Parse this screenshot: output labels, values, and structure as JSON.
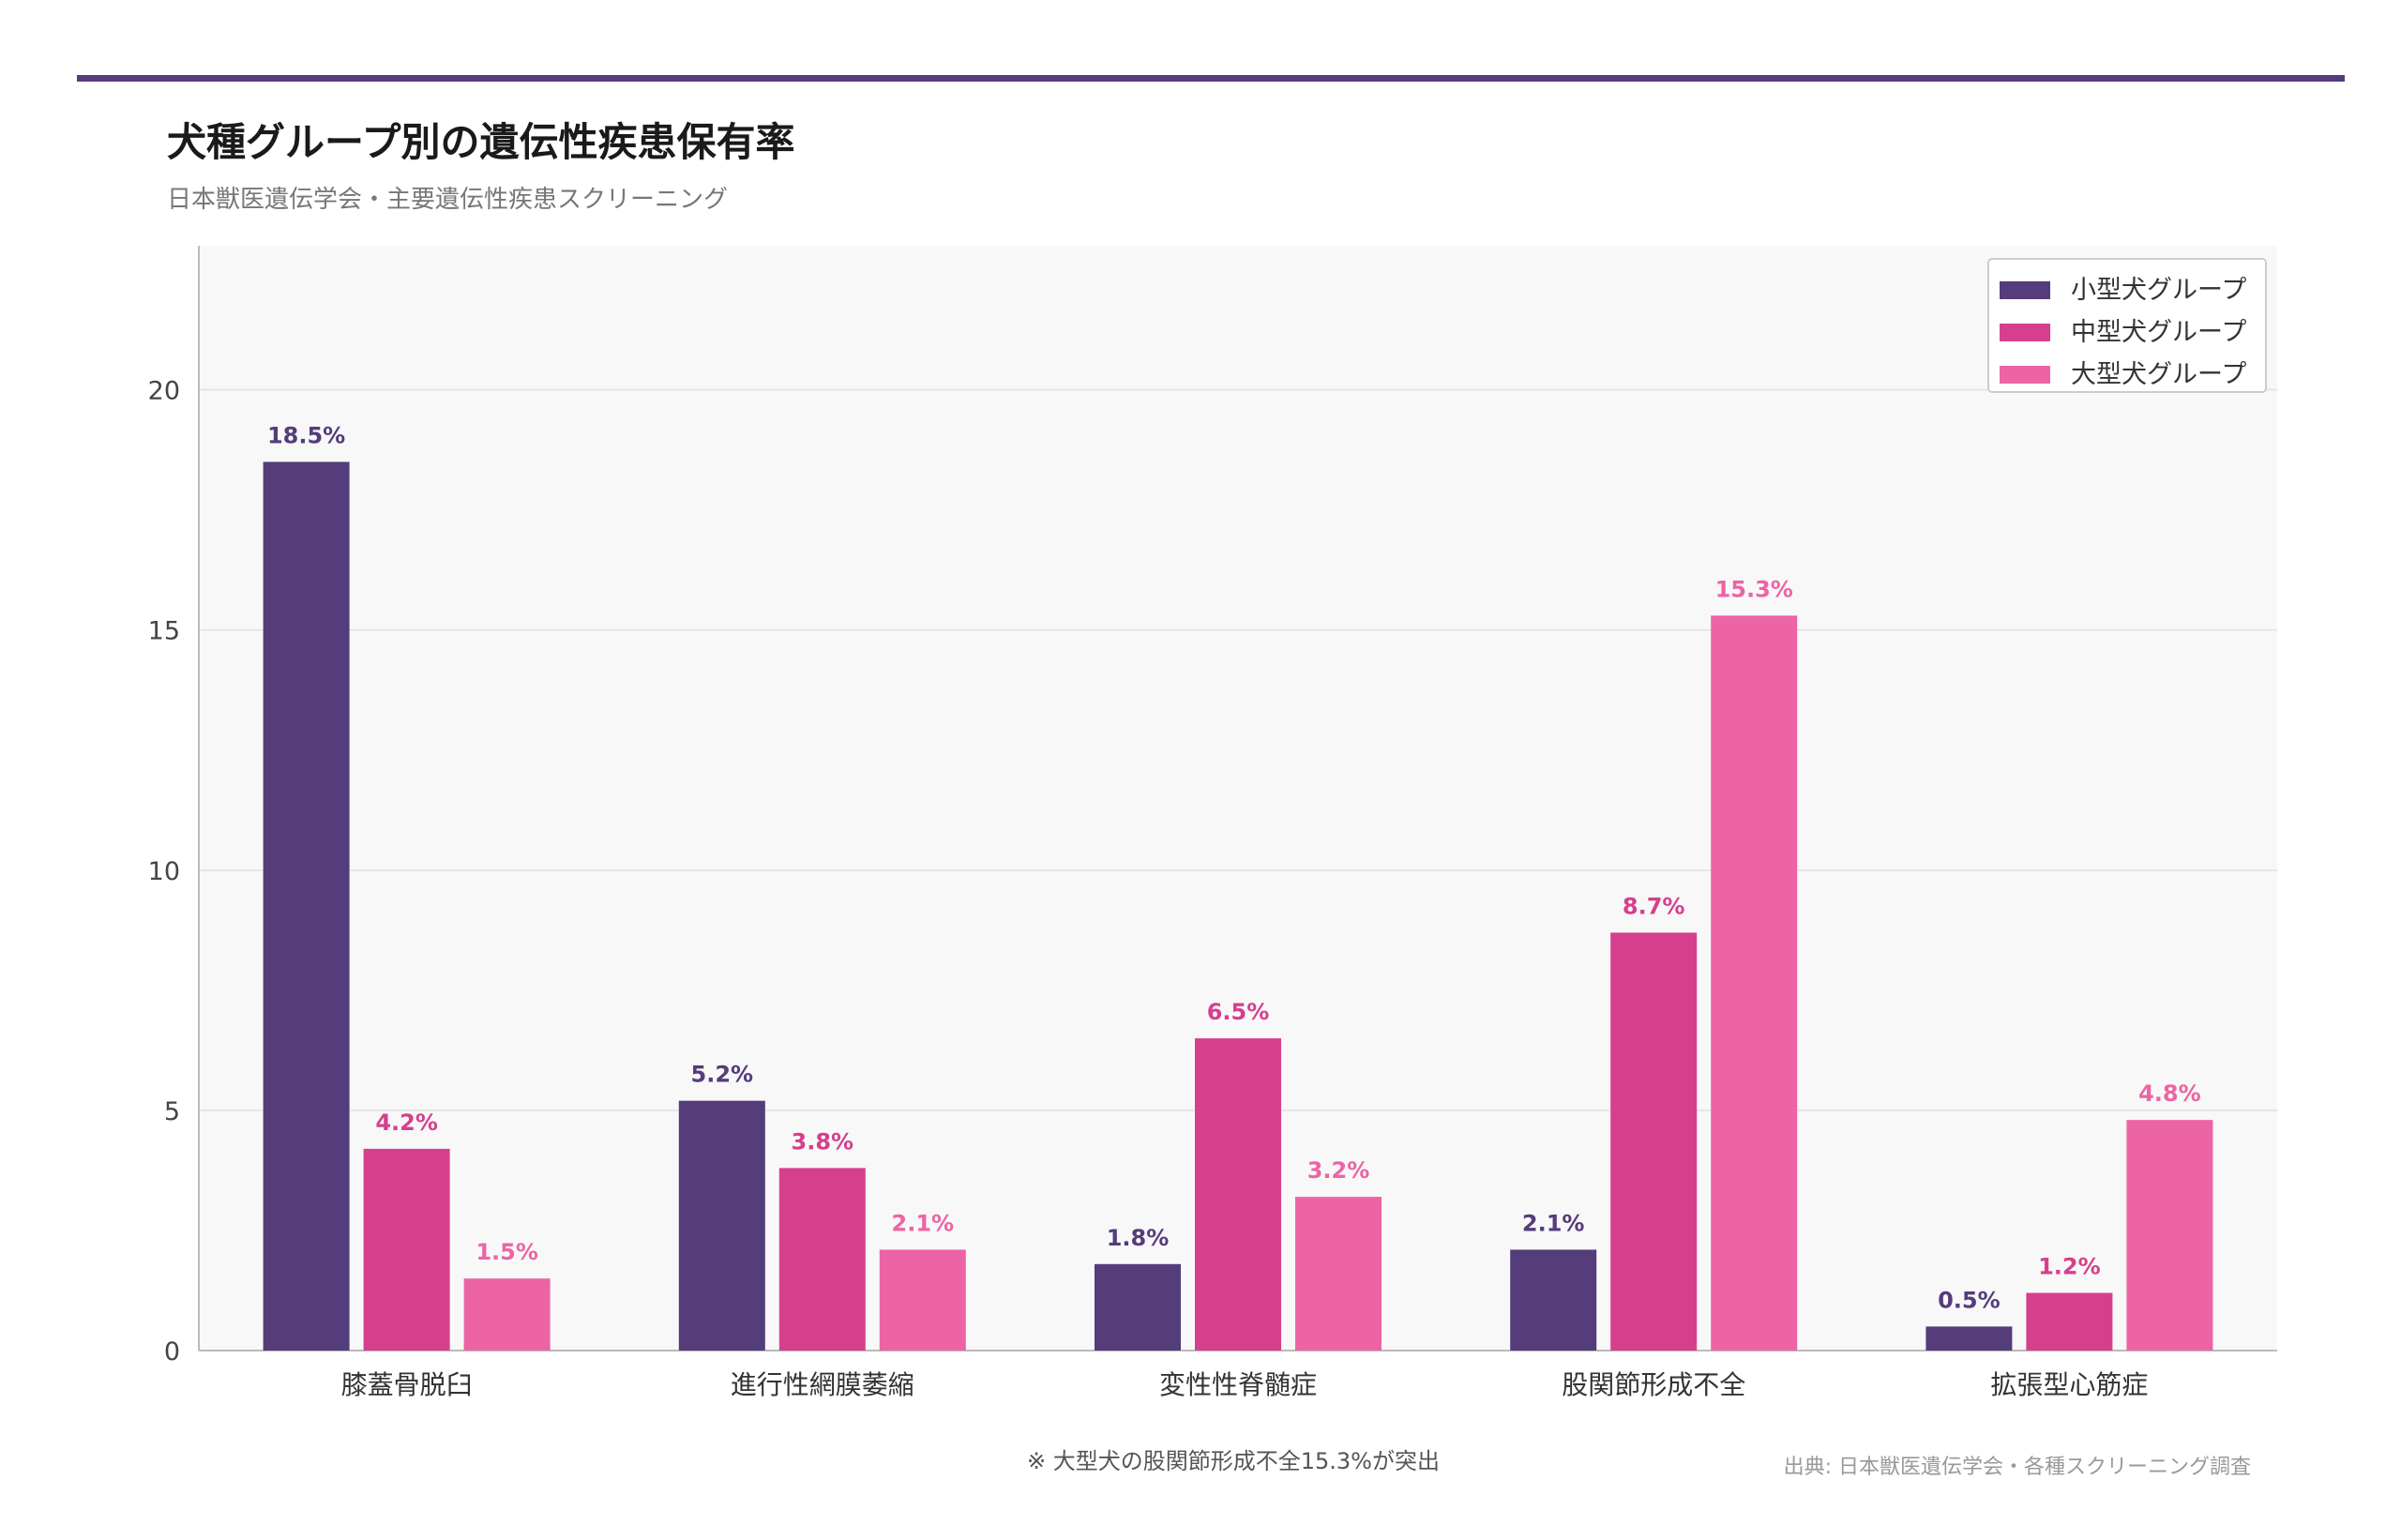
{
  "header": {
    "title": "犬種グループ別の遺伝性疾患保有率",
    "subtitle": "日本獣医遺伝学会・主要遺伝性疾患スクリーニング"
  },
  "footer": {
    "note": "※ 大型犬の股関節形成不全15.3%が突出",
    "source": "出典: 日本獣医遺伝学会・各種スクリーニング調査"
  },
  "colors": {
    "accent": "#553c7b",
    "series": [
      "#553c7b",
      "#d63f8d",
      "#ec64a5"
    ],
    "plot_bg": "#f8f8f8",
    "grid": "#e6e6e6"
  },
  "chart_data": {
    "type": "bar",
    "title": "犬種グループ別の遺伝性疾患保有率",
    "xlabel": "",
    "ylabel": "",
    "ylim": [
      0,
      23
    ],
    "yticks": [
      0,
      5,
      10,
      15,
      20
    ],
    "grid": true,
    "legend_position": "top-right",
    "categories": [
      "膝蓋骨脱臼",
      "進行性網膜萎縮",
      "変性性脊髄症",
      "股関節形成不全",
      "拡張型心筋症"
    ],
    "series": [
      {
        "name": "小型犬グループ",
        "values": [
          18.5,
          5.2,
          1.8,
          2.1,
          0.5
        ],
        "labels": [
          "18.5%",
          "5.2%",
          "1.8%",
          "2.1%",
          "0.5%"
        ]
      },
      {
        "name": "中型犬グループ",
        "values": [
          4.2,
          3.8,
          6.5,
          8.7,
          1.2
        ],
        "labels": [
          "4.2%",
          "3.8%",
          "6.5%",
          "8.7%",
          "1.2%"
        ]
      },
      {
        "name": "大型犬グループ",
        "values": [
          1.5,
          2.1,
          3.2,
          15.3,
          4.8
        ],
        "labels": [
          "1.5%",
          "2.1%",
          "3.2%",
          "15.3%",
          "4.8%"
        ]
      }
    ]
  }
}
